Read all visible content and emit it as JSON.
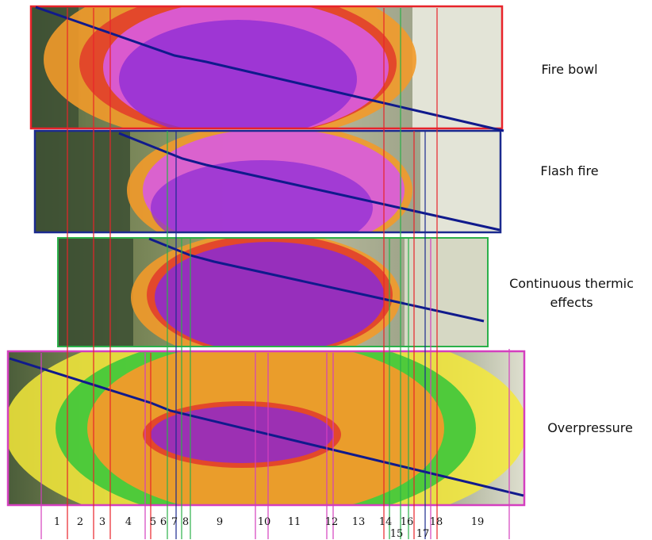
{
  "panels": [
    {
      "id": "fire-bowl",
      "label": "Fire bowl",
      "frame_color": "#e8232a"
    },
    {
      "id": "flash-fire",
      "label": "Flash fire",
      "frame_color": "#1b2a8f"
    },
    {
      "id": "continuous",
      "label": "Continuous thermic effects",
      "frame_color": "#2bb04a"
    },
    {
      "id": "overpressure",
      "label": "Overpressure",
      "frame_color": "#d43fbf"
    }
  ],
  "segments": [
    "1",
    "2",
    "3",
    "4",
    "5",
    "6",
    "7",
    "8",
    "9",
    "10",
    "11",
    "12",
    "13",
    "14",
    "15",
    "16",
    "17",
    "18",
    "19"
  ],
  "colors": {
    "zone_purple": "#8a2bd6",
    "zone_magenta": "#d85ce0",
    "zone_red": "#e23a2a",
    "zone_orange": "#f29a2a",
    "zone_yellow": "#f5e93a",
    "zone_green": "#3ec83a",
    "trajectory": "#101a8c",
    "aerial_dark": "#3c4f33",
    "aerial_field": "#cfd2b0"
  }
}
